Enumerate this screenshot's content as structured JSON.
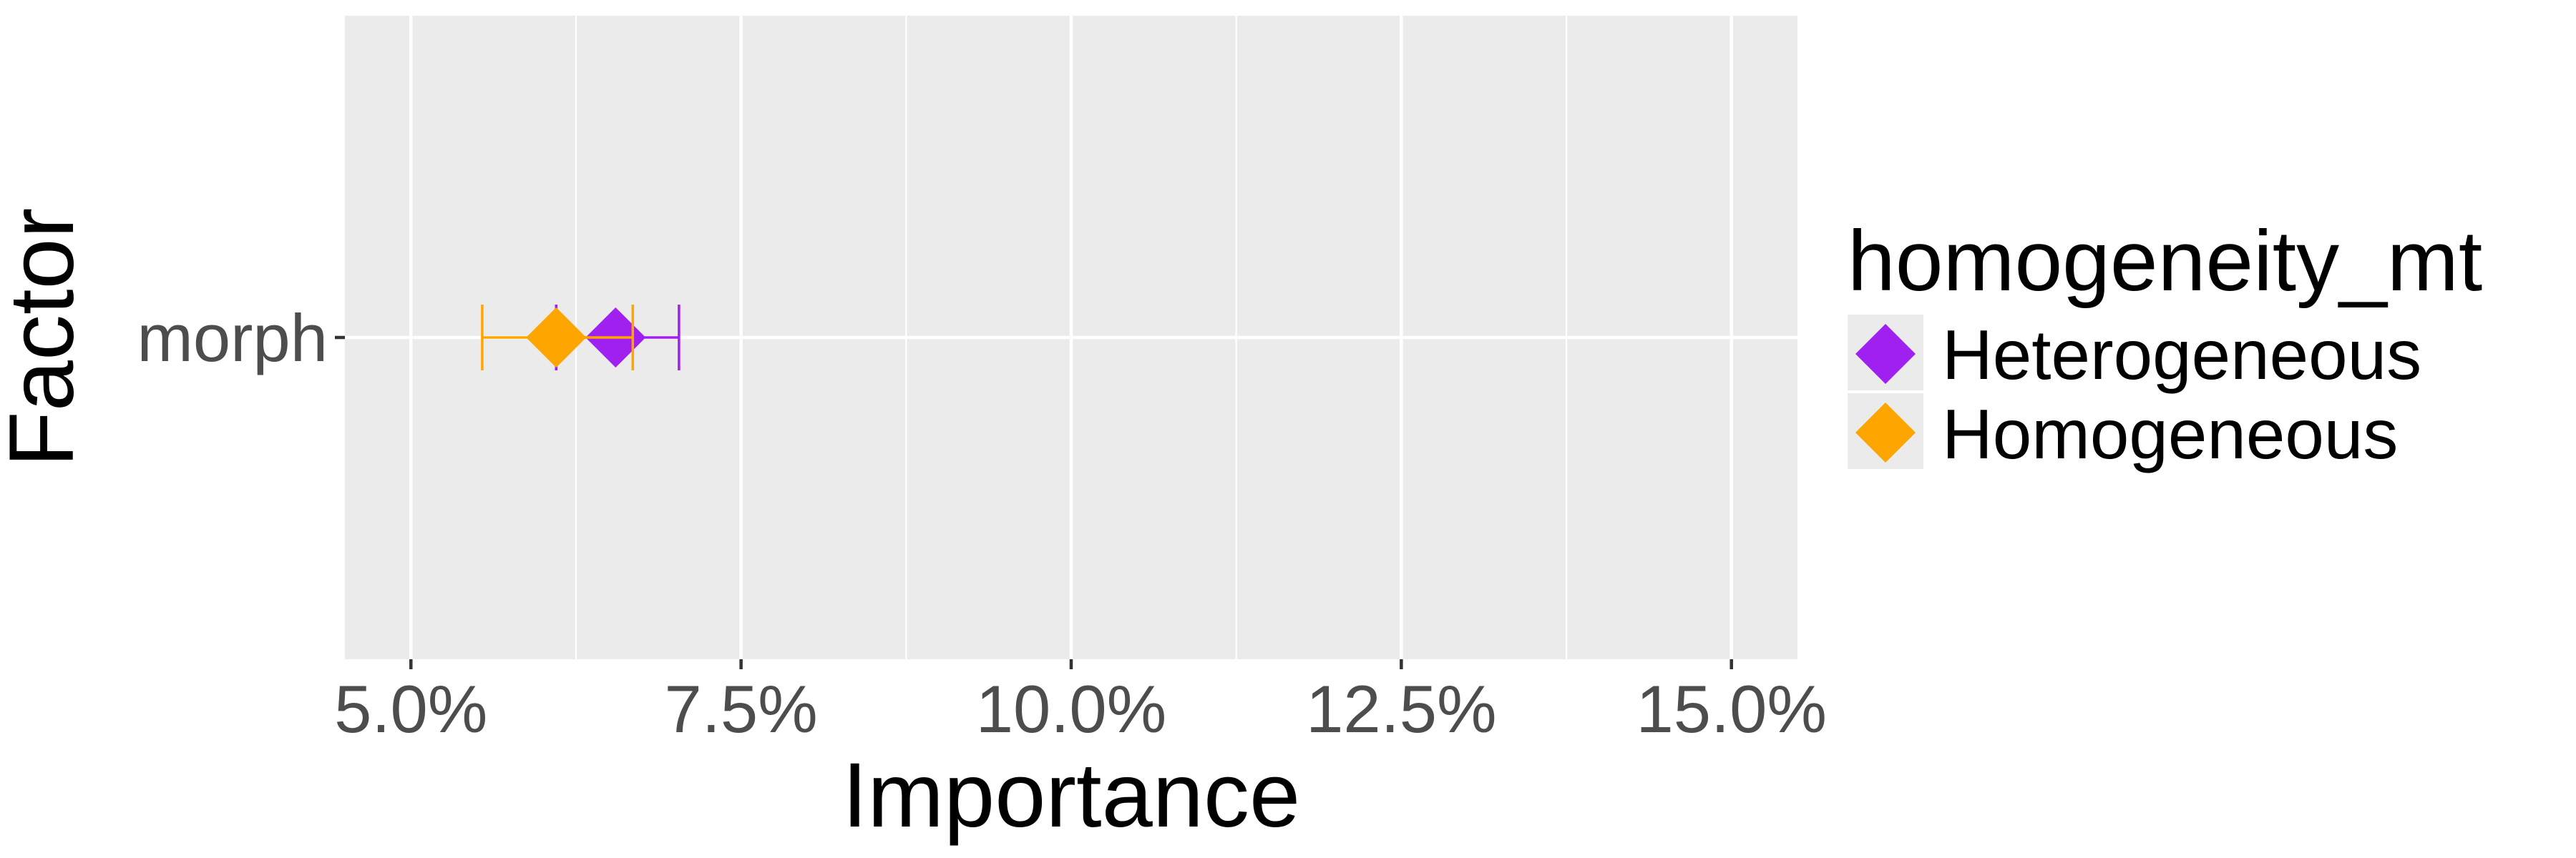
{
  "chart_data": {
    "type": "scatter",
    "title": "",
    "xlabel": "Importance",
    "ylabel": "Factor",
    "xlim": [
      4.5,
      15.5
    ],
    "x_ticks": [
      5.0,
      7.5,
      10.0,
      12.5,
      15.0
    ],
    "x_tick_labels": [
      "5.0%",
      "7.5%",
      "10.0%",
      "12.5%",
      "15.0%"
    ],
    "categories": [
      "morph"
    ],
    "grid": true,
    "legend": {
      "title": "homogeneity_mt",
      "position": "right"
    },
    "series": [
      {
        "name": "Heterogeneous",
        "color": "#A020F0",
        "points": [
          {
            "category": "morph",
            "value": 6.55,
            "lower": 6.1,
            "upper": 7.03
          }
        ]
      },
      {
        "name": "Homogeneous",
        "color": "#FFA500",
        "points": [
          {
            "category": "morph",
            "value": 6.1,
            "lower": 5.54,
            "upper": 6.68
          }
        ]
      }
    ]
  }
}
